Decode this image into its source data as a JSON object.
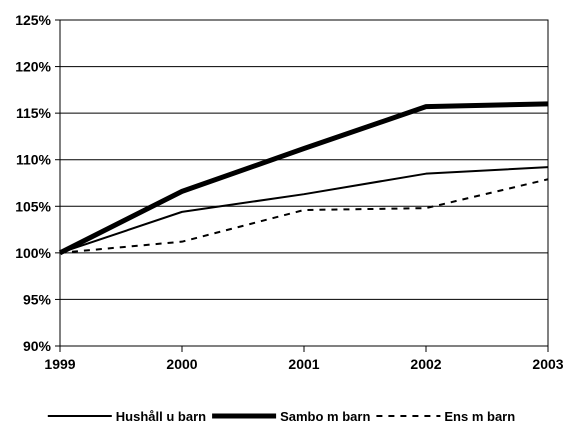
{
  "chart_data": {
    "type": "line",
    "title": "",
    "xlabel": "",
    "ylabel": "",
    "x": [
      "1999",
      "2000",
      "2001",
      "2002",
      "2003"
    ],
    "ylim": [
      90,
      125
    ],
    "yticks": [
      90,
      95,
      100,
      105,
      110,
      115,
      120,
      125
    ],
    "ytick_labels": [
      "90%",
      "95%",
      "100%",
      "105%",
      "110%",
      "115%",
      "120%",
      "125%"
    ],
    "grid": "horizontal",
    "legend_position": "bottom",
    "series": [
      {
        "name": "Hushåll u barn",
        "values": [
          100,
          104.4,
          106.3,
          108.5,
          109.2
        ],
        "style": "solid",
        "weight": "thin",
        "color": "#000000"
      },
      {
        "name": "Sambo m barn",
        "values": [
          100,
          106.6,
          111.2,
          115.7,
          116.0
        ],
        "style": "solid",
        "weight": "thick",
        "color": "#000000"
      },
      {
        "name": "Ens m barn",
        "values": [
          100,
          101.2,
          104.6,
          104.8,
          107.9
        ],
        "style": "dashed",
        "weight": "thin",
        "color": "#000000"
      }
    ]
  }
}
